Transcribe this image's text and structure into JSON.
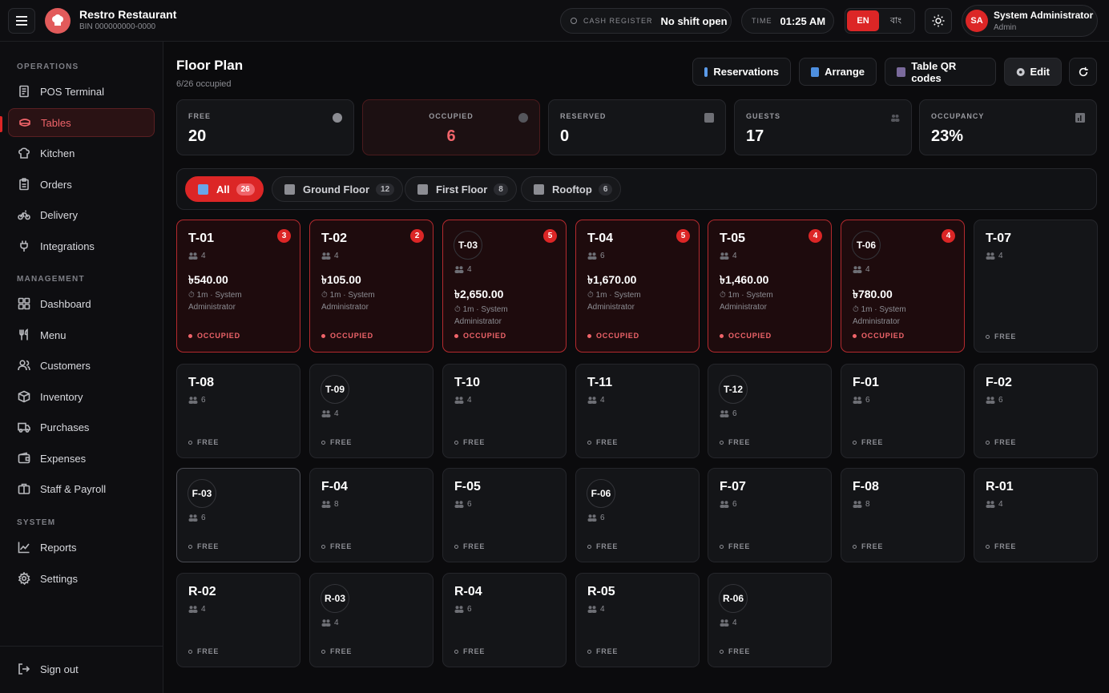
{
  "header": {
    "brand_name": "Restro Restaurant",
    "bin": "BIN 000000000-0000",
    "cash_label": "CASH REGISTER",
    "cash_value": "No shift open",
    "time_label": "TIME",
    "time_value": "01:25 AM",
    "lang_en": "EN",
    "lang_bn": "বাং",
    "user_initials": "SA",
    "user_name": "System Administrator",
    "user_role": "Admin"
  },
  "sidebar": {
    "sections": [
      "OPERATIONS",
      "MANAGEMENT",
      "SYSTEM"
    ],
    "items": [
      {
        "label": "POS Terminal",
        "icon": "receipt-icon"
      },
      {
        "label": "Tables",
        "icon": "table-icon",
        "active": true
      },
      {
        "label": "Kitchen",
        "icon": "chef-hat-icon"
      },
      {
        "label": "Orders",
        "icon": "clipboard-icon"
      },
      {
        "label": "Delivery",
        "icon": "bike-icon"
      },
      {
        "label": "Integrations",
        "icon": "plug-icon"
      },
      {
        "label": "Dashboard",
        "icon": "dashboard-icon"
      },
      {
        "label": "Menu",
        "icon": "utensils-icon"
      },
      {
        "label": "Customers",
        "icon": "users-icon"
      },
      {
        "label": "Inventory",
        "icon": "box-icon"
      },
      {
        "label": "Purchases",
        "icon": "truck-icon"
      },
      {
        "label": "Expenses",
        "icon": "wallet-icon"
      },
      {
        "label": "Staff & Payroll",
        "icon": "briefcase-icon"
      },
      {
        "label": "Reports",
        "icon": "chart-icon"
      },
      {
        "label": "Settings",
        "icon": "gear-icon"
      }
    ],
    "signout": "Sign out"
  },
  "page": {
    "title": "Floor Plan",
    "subtitle": "6/26 occupied",
    "buttons": {
      "reservations": "Reservations",
      "arrange": "Arrange",
      "qr": "Table QR codes",
      "edit": "Edit"
    }
  },
  "stats": [
    {
      "label": "FREE",
      "value": "20"
    },
    {
      "label": "OCCUPIED",
      "value": "6"
    },
    {
      "label": "RESERVED",
      "value": "0"
    },
    {
      "label": "GUESTS",
      "value": "17"
    },
    {
      "label": "OCCUPANCY",
      "value": "23%"
    }
  ],
  "filters": [
    {
      "label": "All",
      "count": "26"
    },
    {
      "label": "Ground Floor",
      "count": "12"
    },
    {
      "label": "First Floor",
      "count": "8"
    },
    {
      "label": "Rooftop",
      "count": "6"
    }
  ],
  "status_text": {
    "occupied": "OCCUPIED",
    "free": "FREE"
  },
  "tables": [
    {
      "name": "T-01",
      "seats": "4",
      "round": false,
      "occupied": true,
      "badge": "3",
      "amount": "৳540.00",
      "meta": "⏱ 1m · System Administrator"
    },
    {
      "name": "T-02",
      "seats": "4",
      "round": false,
      "occupied": true,
      "badge": "2",
      "amount": "৳105.00",
      "meta": "⏱ 1m · System Administrator"
    },
    {
      "name": "T-03",
      "seats": "4",
      "round": true,
      "occupied": true,
      "badge": "5",
      "amount": "৳2,650.00",
      "meta": "⏱ 1m · System Administrator"
    },
    {
      "name": "T-04",
      "seats": "6",
      "round": false,
      "occupied": true,
      "badge": "5",
      "amount": "৳1,670.00",
      "meta": "⏱ 1m · System Administrator"
    },
    {
      "name": "T-05",
      "seats": "4",
      "round": false,
      "occupied": true,
      "badge": "4",
      "amount": "৳1,460.00",
      "meta": "⏱ 1m · System Administrator"
    },
    {
      "name": "T-06",
      "seats": "4",
      "round": true,
      "occupied": true,
      "badge": "4",
      "amount": "৳780.00",
      "meta": "⏱ 1m · System Administrator"
    },
    {
      "name": "T-07",
      "seats": "4",
      "round": false,
      "occupied": false
    },
    {
      "name": "T-08",
      "seats": "6",
      "round": false,
      "occupied": false
    },
    {
      "name": "T-09",
      "seats": "4",
      "round": true,
      "occupied": false
    },
    {
      "name": "T-10",
      "seats": "4",
      "round": false,
      "occupied": false
    },
    {
      "name": "T-11",
      "seats": "4",
      "round": false,
      "occupied": false
    },
    {
      "name": "T-12",
      "seats": "6",
      "round": true,
      "occupied": false
    },
    {
      "name": "F-01",
      "seats": "6",
      "round": false,
      "occupied": false
    },
    {
      "name": "F-02",
      "seats": "6",
      "round": false,
      "occupied": false
    },
    {
      "name": "F-03",
      "seats": "6",
      "round": true,
      "occupied": false,
      "selected": true
    },
    {
      "name": "F-04",
      "seats": "8",
      "round": false,
      "occupied": false
    },
    {
      "name": "F-05",
      "seats": "6",
      "round": false,
      "occupied": false
    },
    {
      "name": "F-06",
      "seats": "6",
      "round": true,
      "occupied": false
    },
    {
      "name": "F-07",
      "seats": "6",
      "round": false,
      "occupied": false
    },
    {
      "name": "F-08",
      "seats": "8",
      "round": false,
      "occupied": false
    },
    {
      "name": "R-01",
      "seats": "4",
      "round": false,
      "occupied": false
    },
    {
      "name": "R-02",
      "seats": "4",
      "round": false,
      "occupied": false
    },
    {
      "name": "R-03",
      "seats": "4",
      "round": true,
      "occupied": false
    },
    {
      "name": "R-04",
      "seats": "6",
      "round": false,
      "occupied": false
    },
    {
      "name": "R-05",
      "seats": "4",
      "round": false,
      "occupied": false
    },
    {
      "name": "R-06",
      "seats": "4",
      "round": true,
      "occupied": false
    }
  ],
  "colors": {
    "accent": "#dc2626",
    "occupied_text": "#f0646a",
    "background": "#0b0b0d"
  }
}
